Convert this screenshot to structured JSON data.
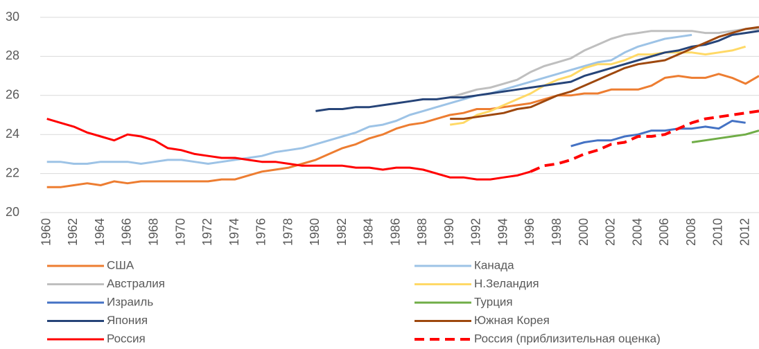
{
  "chart_data": {
    "type": "line",
    "x": [
      1960,
      1961,
      1962,
      1963,
      1964,
      1965,
      1966,
      1967,
      1968,
      1969,
      1970,
      1971,
      1972,
      1973,
      1974,
      1975,
      1976,
      1977,
      1978,
      1979,
      1980,
      1981,
      1982,
      1983,
      1984,
      1985,
      1986,
      1987,
      1988,
      1989,
      1990,
      1991,
      1992,
      1993,
      1994,
      1995,
      1996,
      1997,
      1998,
      1999,
      2000,
      2001,
      2002,
      2003,
      2004,
      2005,
      2006,
      2007,
      2008,
      2009,
      2010,
      2011,
      2012,
      2013
    ],
    "xlim": [
      1959.5,
      2013
    ],
    "xticks": [
      1960,
      1962,
      1964,
      1966,
      1968,
      1970,
      1972,
      1974,
      1976,
      1978,
      1980,
      1982,
      1984,
      1986,
      1988,
      1990,
      1992,
      1994,
      1996,
      1998,
      2000,
      2002,
      2004,
      2006,
      2008,
      2010,
      2012
    ],
    "ylim": [
      20,
      30
    ],
    "yticks": [
      20,
      22,
      24,
      26,
      28,
      30
    ],
    "grid": true,
    "series": [
      {
        "name": "США",
        "color": "#ed7d31",
        "values": [
          21.3,
          21.3,
          21.4,
          21.5,
          21.4,
          21.6,
          21.5,
          21.6,
          21.6,
          21.6,
          21.6,
          21.6,
          21.6,
          21.7,
          21.7,
          21.9,
          22.1,
          22.2,
          22.3,
          22.5,
          22.7,
          23.0,
          23.3,
          23.5,
          23.8,
          24.0,
          24.3,
          24.5,
          24.6,
          24.8,
          25.0,
          25.1,
          25.3,
          25.3,
          25.4,
          25.5,
          25.6,
          25.8,
          26.0,
          26.0,
          26.1,
          26.1,
          26.3,
          26.3,
          26.3,
          26.5,
          26.9,
          27.0,
          26.9,
          26.9,
          27.1,
          26.9,
          26.6,
          27.0
        ]
      },
      {
        "name": "Канада",
        "color": "#9dc3e6",
        "values": [
          22.6,
          22.6,
          22.5,
          22.5,
          22.6,
          22.6,
          22.6,
          22.5,
          22.6,
          22.7,
          22.7,
          22.6,
          22.5,
          22.6,
          22.7,
          22.8,
          22.9,
          23.1,
          23.2,
          23.3,
          23.5,
          23.7,
          23.9,
          24.1,
          24.4,
          24.5,
          24.7,
          25.0,
          25.2,
          25.4,
          25.6,
          25.8,
          26.0,
          26.1,
          26.3,
          26.5,
          26.7,
          26.9,
          27.1,
          27.3,
          27.5,
          27.7,
          27.8,
          28.2,
          28.5,
          28.7,
          28.9,
          29.0,
          29.1,
          null,
          null,
          null,
          null,
          null
        ]
      },
      {
        "name": "Австралия",
        "color": "#bfbfbf",
        "values": [
          null,
          null,
          null,
          null,
          null,
          null,
          null,
          null,
          null,
          null,
          null,
          null,
          null,
          null,
          null,
          null,
          null,
          null,
          null,
          null,
          null,
          null,
          null,
          null,
          null,
          null,
          null,
          null,
          null,
          null,
          25.9,
          26.1,
          26.3,
          26.4,
          26.6,
          26.8,
          27.2,
          27.5,
          27.7,
          27.9,
          28.3,
          28.6,
          28.9,
          29.1,
          29.2,
          29.3,
          29.3,
          29.3,
          29.3,
          29.2,
          29.2,
          29.3,
          29.4,
          29.4
        ]
      },
      {
        "name": "Н.Зеландия",
        "color": "#ffd966",
        "values": [
          null,
          null,
          null,
          null,
          null,
          null,
          null,
          null,
          null,
          null,
          null,
          null,
          null,
          null,
          null,
          null,
          null,
          null,
          null,
          null,
          null,
          null,
          null,
          null,
          null,
          null,
          null,
          null,
          null,
          null,
          24.5,
          24.6,
          25.0,
          25.2,
          25.5,
          25.8,
          26.1,
          26.5,
          26.8,
          27.0,
          27.4,
          27.6,
          27.6,
          27.8,
          28.1,
          28.1,
          28.2,
          28.2,
          28.2,
          28.1,
          28.2,
          28.3,
          28.5,
          null
        ]
      },
      {
        "name": "Израиль",
        "color": "#4472c4",
        "values": [
          null,
          null,
          null,
          null,
          null,
          null,
          null,
          null,
          null,
          null,
          null,
          null,
          null,
          null,
          null,
          null,
          null,
          null,
          null,
          null,
          null,
          null,
          null,
          null,
          null,
          null,
          null,
          null,
          null,
          null,
          null,
          null,
          null,
          null,
          null,
          null,
          null,
          null,
          null,
          23.4,
          23.6,
          23.7,
          23.7,
          23.9,
          24.0,
          24.2,
          24.2,
          24.3,
          24.3,
          24.4,
          24.3,
          24.7,
          24.6,
          null
        ]
      },
      {
        "name": "Турция",
        "color": "#70ad47",
        "values": [
          null,
          null,
          null,
          null,
          null,
          null,
          null,
          null,
          null,
          null,
          null,
          null,
          null,
          null,
          null,
          null,
          null,
          null,
          null,
          null,
          null,
          null,
          null,
          null,
          null,
          null,
          null,
          null,
          null,
          null,
          null,
          null,
          null,
          null,
          null,
          null,
          null,
          null,
          null,
          null,
          null,
          null,
          null,
          null,
          null,
          null,
          null,
          null,
          23.6,
          23.7,
          23.8,
          23.9,
          24.0,
          24.2
        ]
      },
      {
        "name": "Япония",
        "color": "#264478",
        "values": [
          null,
          null,
          null,
          null,
          null,
          null,
          null,
          null,
          null,
          null,
          null,
          null,
          null,
          null,
          null,
          null,
          null,
          null,
          null,
          null,
          25.2,
          25.3,
          25.3,
          25.4,
          25.4,
          25.5,
          25.6,
          25.7,
          25.8,
          25.8,
          25.9,
          25.9,
          26.0,
          26.1,
          26.2,
          26.3,
          26.4,
          26.5,
          26.6,
          26.7,
          27.0,
          27.2,
          27.4,
          27.6,
          27.8,
          28.0,
          28.2,
          28.3,
          28.5,
          28.6,
          28.8,
          29.1,
          29.2,
          29.3
        ]
      },
      {
        "name": "Южная Корея",
        "color": "#9e480e",
        "values": [
          null,
          null,
          null,
          null,
          null,
          null,
          null,
          null,
          null,
          null,
          null,
          null,
          null,
          null,
          null,
          null,
          null,
          null,
          null,
          null,
          null,
          null,
          null,
          null,
          null,
          null,
          null,
          null,
          null,
          null,
          24.8,
          24.8,
          24.9,
          25.0,
          25.1,
          25.3,
          25.4,
          25.7,
          26.0,
          26.2,
          26.5,
          26.8,
          27.1,
          27.4,
          27.6,
          27.7,
          27.8,
          28.1,
          28.4,
          28.7,
          29.0,
          29.2,
          29.4,
          29.5
        ]
      },
      {
        "name": "Россия",
        "color": "#ff0000",
        "values": [
          24.8,
          24.6,
          24.4,
          24.1,
          23.9,
          23.7,
          24.0,
          23.9,
          23.7,
          23.3,
          23.2,
          23.0,
          22.9,
          22.8,
          22.8,
          22.7,
          22.6,
          22.6,
          22.5,
          22.4,
          22.4,
          22.4,
          22.4,
          22.3,
          22.3,
          22.2,
          22.3,
          22.3,
          22.2,
          22.0,
          21.8,
          21.8,
          21.7,
          21.7,
          21.8,
          21.9,
          22.1,
          null,
          null,
          null,
          null,
          null,
          null,
          null,
          null,
          null,
          null,
          null,
          null,
          null,
          null,
          null,
          null,
          null
        ]
      },
      {
        "name": "Россия (приблизительная оценка)",
        "color": "#ff0000",
        "dashed": true,
        "values": [
          null,
          null,
          null,
          null,
          null,
          null,
          null,
          null,
          null,
          null,
          null,
          null,
          null,
          null,
          null,
          null,
          null,
          null,
          null,
          null,
          null,
          null,
          null,
          null,
          null,
          null,
          null,
          null,
          null,
          null,
          null,
          null,
          null,
          null,
          null,
          null,
          22.1,
          22.4,
          22.5,
          22.7,
          23.0,
          23.2,
          23.5,
          23.6,
          23.9,
          23.9,
          24.0,
          24.3,
          24.6,
          24.8,
          24.9,
          25.0,
          25.1,
          25.2
        ]
      }
    ]
  }
}
